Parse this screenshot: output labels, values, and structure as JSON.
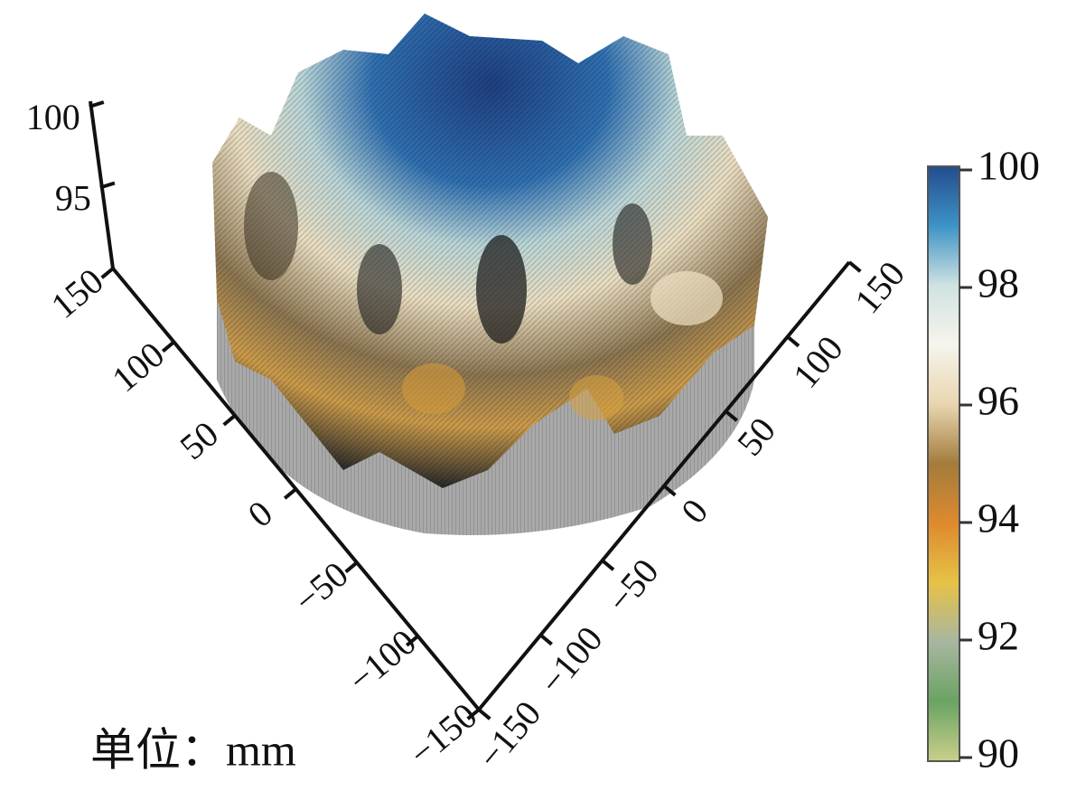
{
  "chart_data": {
    "type": "surface3d",
    "unit_label": "单位：mm",
    "xlim": [
      -150,
      150
    ],
    "xticks": [
      {
        "value": -150,
        "label": "−150"
      },
      {
        "value": -100,
        "label": "−100"
      },
      {
        "value": -50,
        "label": "−50"
      },
      0,
      50,
      100,
      150
    ],
    "ylim": [
      -150,
      150
    ],
    "yticks": [
      {
        "value": -150,
        "label": "−150"
      },
      {
        "value": -100,
        "label": "−100"
      },
      {
        "value": -50,
        "label": "−50"
      },
      0,
      50,
      100,
      150
    ],
    "zlim": [
      90,
      100
    ],
    "zticks": [
      95,
      100
    ],
    "clim": [
      90,
      100
    ],
    "cticks": [
      90,
      92,
      94,
      96,
      98,
      100
    ],
    "colormap": [
      "#c9d08a",
      "#6aa363",
      "#a8b6a0",
      "#e6c246",
      "#de8a2e",
      "#a37c3c",
      "#e8d6b0",
      "#f7f4ec",
      "#cfe2e2",
      "#3d93c6",
      "#234d8e"
    ]
  }
}
